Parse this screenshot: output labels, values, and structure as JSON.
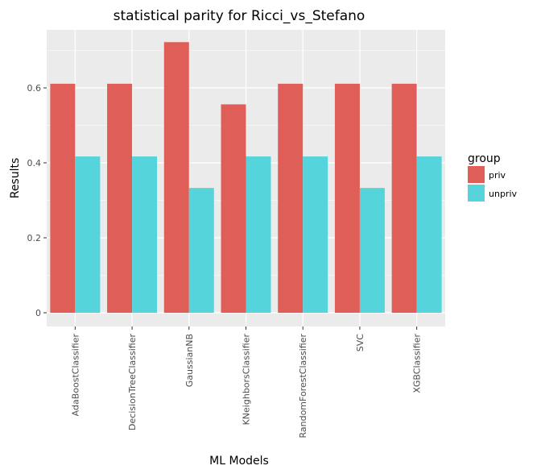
{
  "chart_data": {
    "type": "bar",
    "title": "statistical parity for Ricci_vs_Stefano",
    "xlabel": "ML Models",
    "ylabel": "Results",
    "categories": [
      "AdaBoostClassifier",
      "DecisionTreeClassifier",
      "GaussianNB",
      "KNeighborsClassifier",
      "RandomForestClassifier",
      "SVC",
      "XGBClassifier"
    ],
    "series": [
      {
        "name": "priv",
        "values": [
          0.611,
          0.611,
          0.722,
          0.556,
          0.611,
          0.611,
          0.611
        ],
        "color": "#DF5F58"
      },
      {
        "name": "unpriv",
        "values": [
          0.417,
          0.417,
          0.333,
          0.417,
          0.417,
          0.333,
          0.417
        ],
        "color": "#55D4DC"
      }
    ],
    "ylim": [
      0,
      0.76
    ],
    "yticks": [
      0,
      0.2,
      0.4,
      0.6
    ],
    "ytick_labels": [
      "0",
      "0.2",
      "0.4",
      "0.6"
    ],
    "grid": true,
    "legend": {
      "title": "group",
      "position": "right"
    },
    "panel_background": "#EBEBEB",
    "grid_color": "#FFFFFF"
  }
}
